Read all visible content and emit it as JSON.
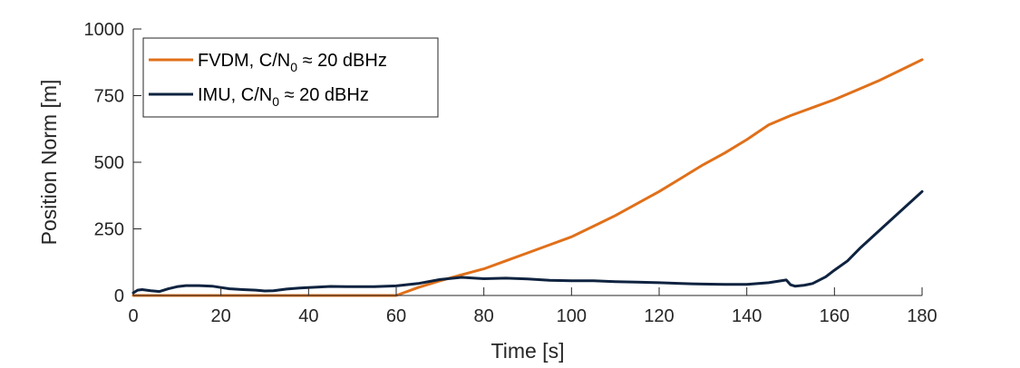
{
  "chart_data": {
    "type": "line",
    "xlabel": "Time [s]",
    "ylabel": "Position Norm [m]",
    "xlim": [
      0,
      180
    ],
    "ylim": [
      0,
      1000
    ],
    "xticks": [
      0,
      20,
      40,
      60,
      80,
      100,
      120,
      140,
      160,
      180
    ],
    "yticks": [
      0,
      250,
      500,
      750,
      1000
    ],
    "grid": false,
    "legend_position": "top-left",
    "series": [
      {
        "name": "FVDM, C/N0 ≈ 20 dBHz",
        "legend": {
          "prefix": "FVDM, C/N",
          "subscript": "0",
          "suffix": " ≈ 20 dBHz"
        },
        "color": "#E0701A",
        "x": [
          0,
          60,
          65,
          70,
          75,
          80,
          85,
          90,
          95,
          100,
          105,
          110,
          115,
          120,
          125,
          130,
          135,
          140,
          145,
          150,
          155,
          160,
          165,
          170,
          175,
          180
        ],
        "y": [
          0,
          0,
          30,
          55,
          78,
          100,
          130,
          160,
          190,
          220,
          260,
          300,
          345,
          390,
          440,
          490,
          535,
          585,
          640,
          675,
          705,
          735,
          770,
          805,
          845,
          885
        ]
      },
      {
        "name": "IMU, C/N0 ≈ 20 dBHz",
        "legend": {
          "prefix": "IMU, C/N",
          "subscript": "0",
          "suffix": " ≈ 20 dBHz"
        },
        "color": "#0F2340",
        "x": [
          0,
          1,
          2,
          4,
          6,
          8,
          10,
          12,
          15,
          18,
          20,
          22,
          25,
          28,
          30,
          32,
          35,
          38,
          40,
          45,
          50,
          55,
          60,
          65,
          70,
          75,
          80,
          85,
          90,
          95,
          100,
          105,
          110,
          115,
          120,
          125,
          130,
          135,
          140,
          145,
          149,
          150,
          151,
          153,
          155,
          158,
          160,
          163,
          166,
          170,
          175,
          180
        ],
        "y": [
          10,
          20,
          22,
          18,
          15,
          25,
          33,
          37,
          37,
          35,
          30,
          25,
          22,
          20,
          17,
          18,
          24,
          28,
          30,
          34,
          33,
          33,
          36,
          45,
          60,
          68,
          63,
          65,
          62,
          57,
          55,
          55,
          52,
          50,
          48,
          45,
          43,
          42,
          42,
          48,
          58,
          40,
          35,
          38,
          45,
          70,
          95,
          130,
          180,
          240,
          315,
          390
        ]
      }
    ]
  }
}
